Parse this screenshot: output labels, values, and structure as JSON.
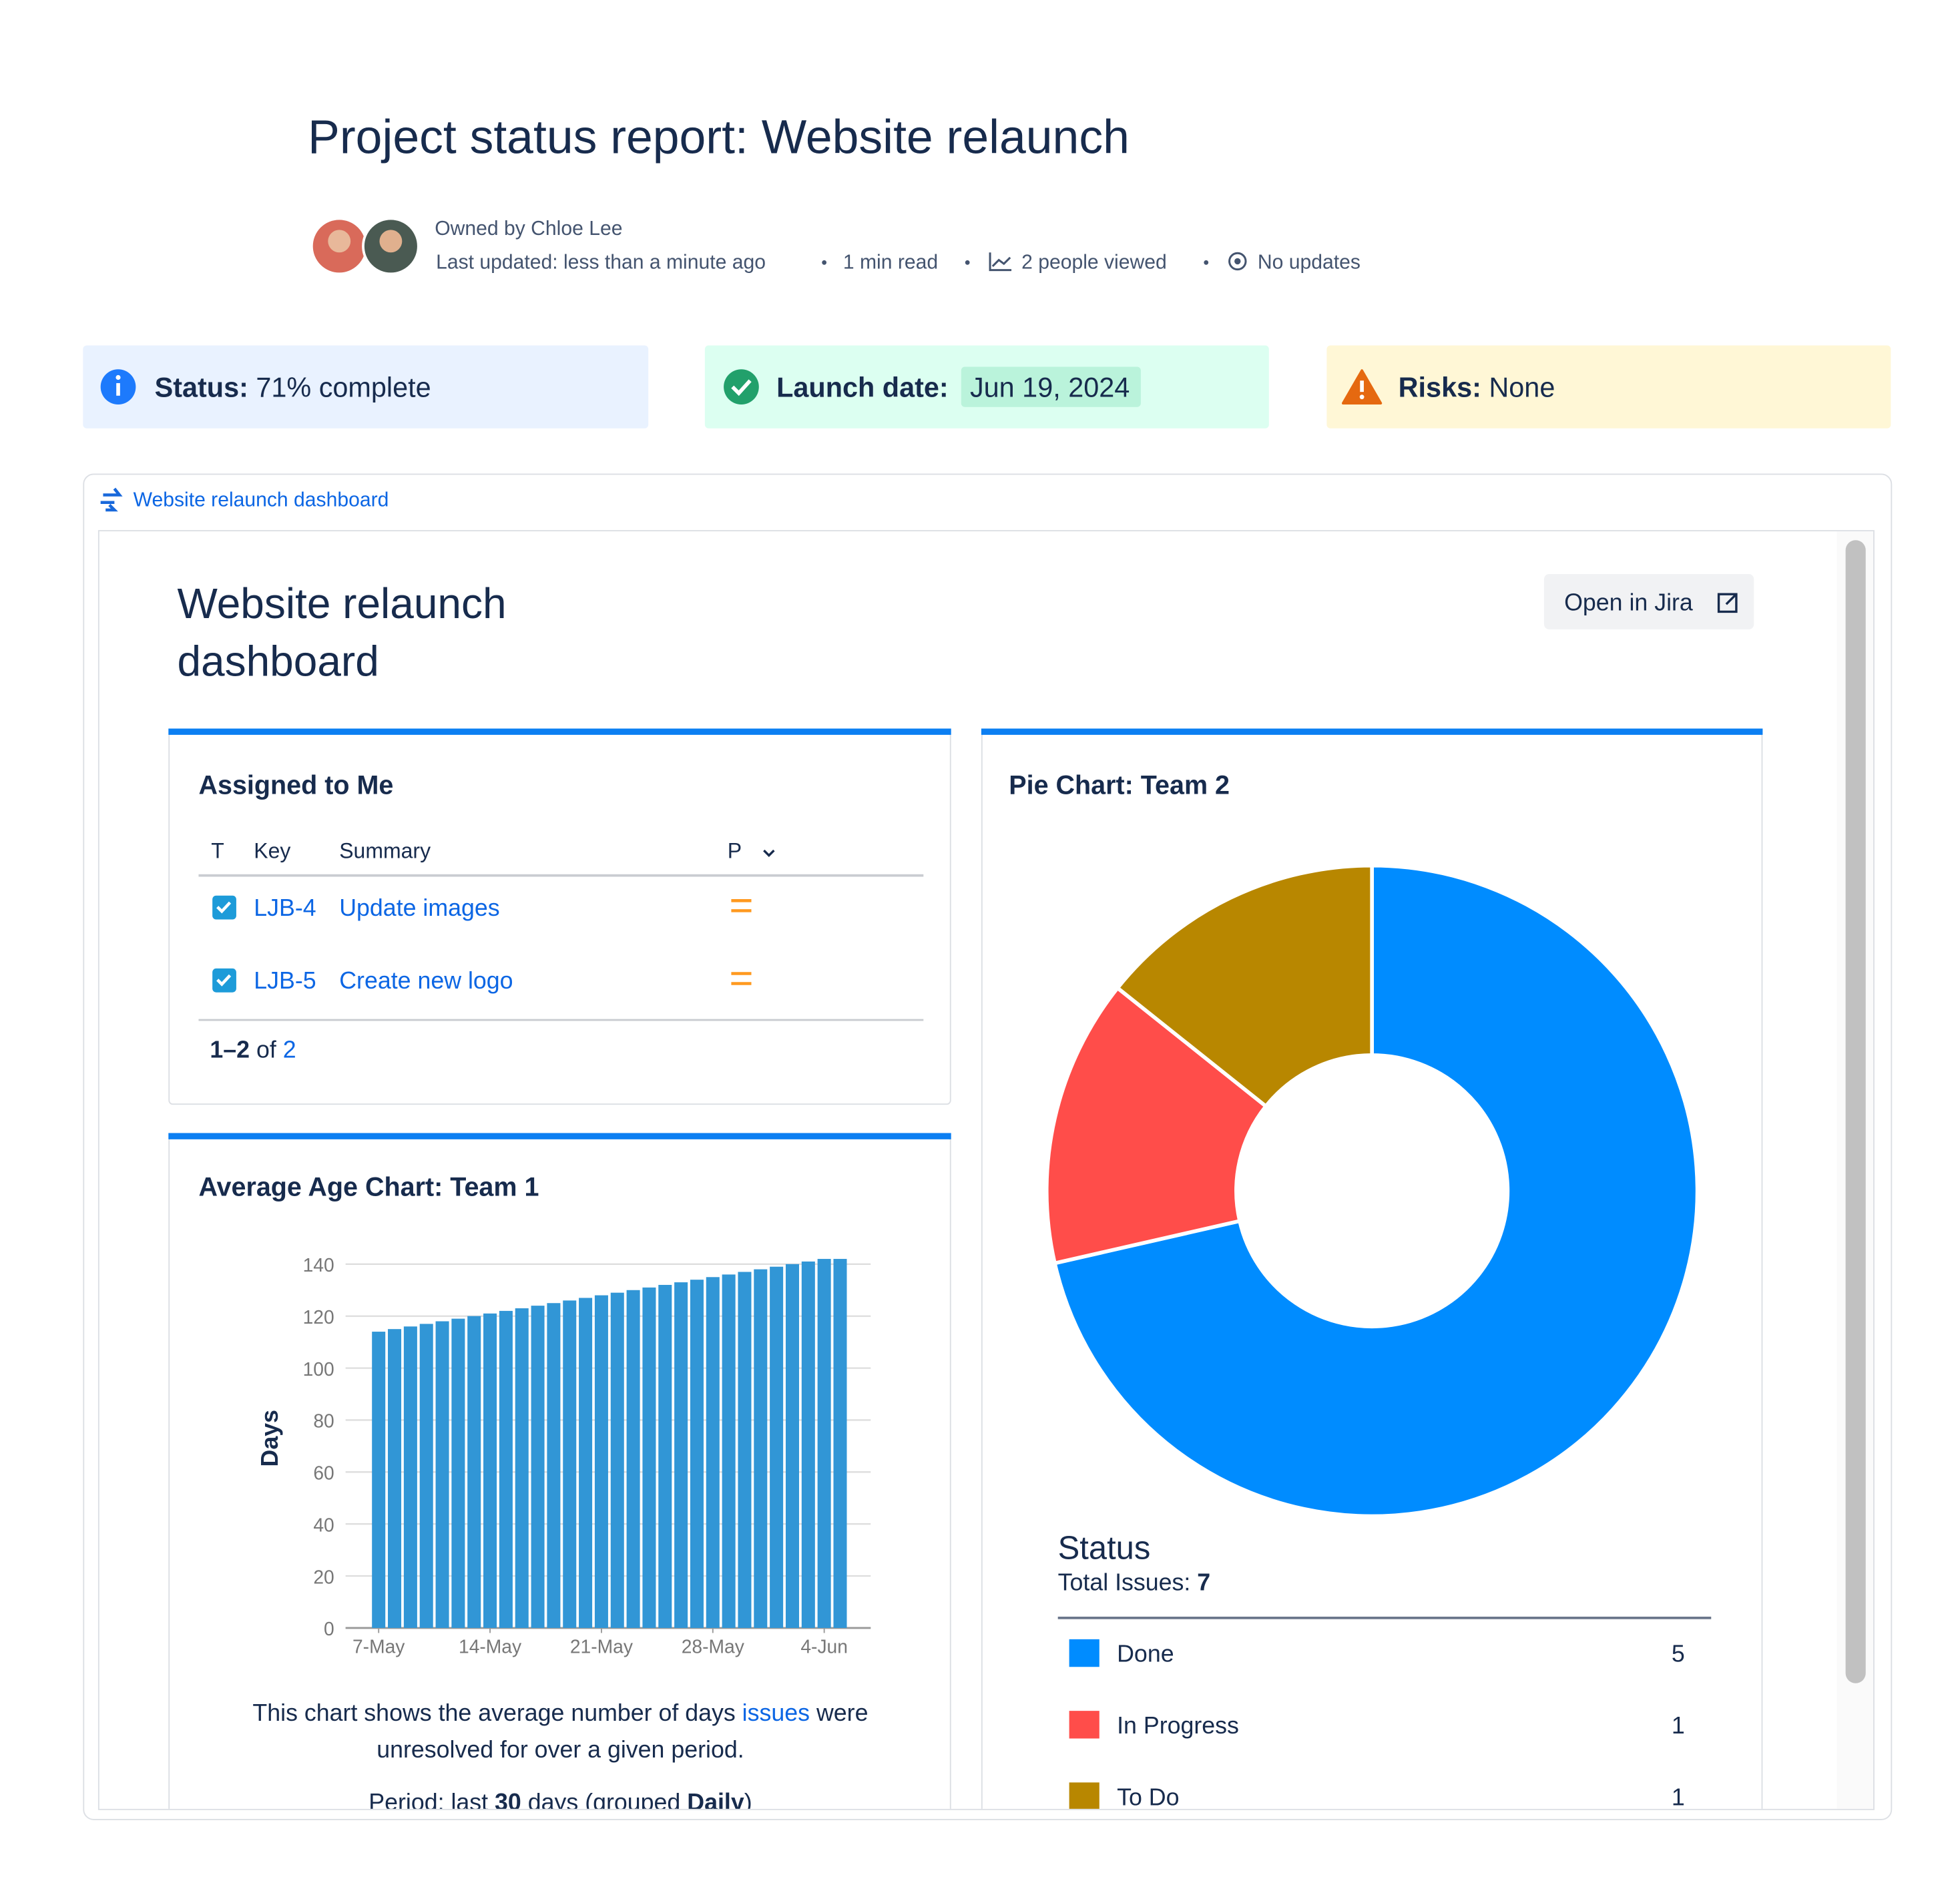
{
  "header": {
    "title": "Project status report: Website relaunch",
    "owner": "Owned by Chloe Lee",
    "last_updated": "Last updated: less than a minute ago",
    "read_time": "1 min read",
    "viewers": "2 people viewed",
    "updates": "No updates"
  },
  "status_cards": [
    {
      "label": "Status:",
      "value": "71% complete"
    },
    {
      "label": "Launch date:",
      "value": "Jun 19, 2024"
    },
    {
      "label": "Risks:",
      "value": "None"
    }
  ],
  "embed": {
    "link": "Website relaunch dashboard",
    "title_lines": [
      "Website relaunch",
      "dashboard"
    ],
    "button": "Open in Jira"
  },
  "assigned": {
    "title": "Assigned to Me",
    "columns": [
      "T",
      "Key",
      "Summary",
      "P"
    ],
    "rows": [
      {
        "key": "LJB-4",
        "summary": "Update images"
      },
      {
        "key": "LJB-5",
        "summary": "Create new logo"
      }
    ],
    "footer": {
      "range": "1–2",
      "of": "of",
      "total": "2"
    }
  },
  "age_chart": {
    "type": "bar",
    "title": "Average Age Chart: Team 1",
    "y_label": "Days",
    "categories": [
      "7-May",
      null,
      null,
      null,
      null,
      null,
      null,
      "14-May",
      null,
      null,
      null,
      null,
      null,
      null,
      "21-May",
      null,
      null,
      null,
      null,
      null,
      null,
      "28-May",
      null,
      null,
      null,
      null,
      null,
      null,
      "4-Jun",
      null
    ],
    "values": [
      114,
      115,
      116,
      117,
      118,
      119,
      120,
      121,
      122,
      123,
      124,
      125,
      126,
      127,
      128,
      129,
      130,
      131,
      132,
      133,
      134,
      135,
      136,
      137,
      138,
      139,
      140,
      141,
      142,
      142
    ],
    "color": "#3196d6",
    "ylim": [
      0,
      145
    ],
    "yticks": [
      0,
      20,
      40,
      60,
      80,
      100,
      120,
      140
    ],
    "grid": true,
    "description": [
      "This chart shows the average number of days",
      "issues",
      "were",
      "unresolved for over a given period."
    ],
    "period": [
      "Period: last",
      "30",
      "days (grouped",
      "Daily",
      ")"
    ]
  },
  "pie_chart": {
    "type": "pie",
    "title": "Pie Chart: Team 2",
    "legend_title": "Status",
    "total_label": "Total Issues:",
    "total": 7,
    "categories": [
      "Done",
      "In Progress",
      "To Do"
    ],
    "values": [
      5,
      1,
      1
    ],
    "colors": [
      "#008cff",
      "#ff4d4a",
      "#b88700"
    ]
  }
}
